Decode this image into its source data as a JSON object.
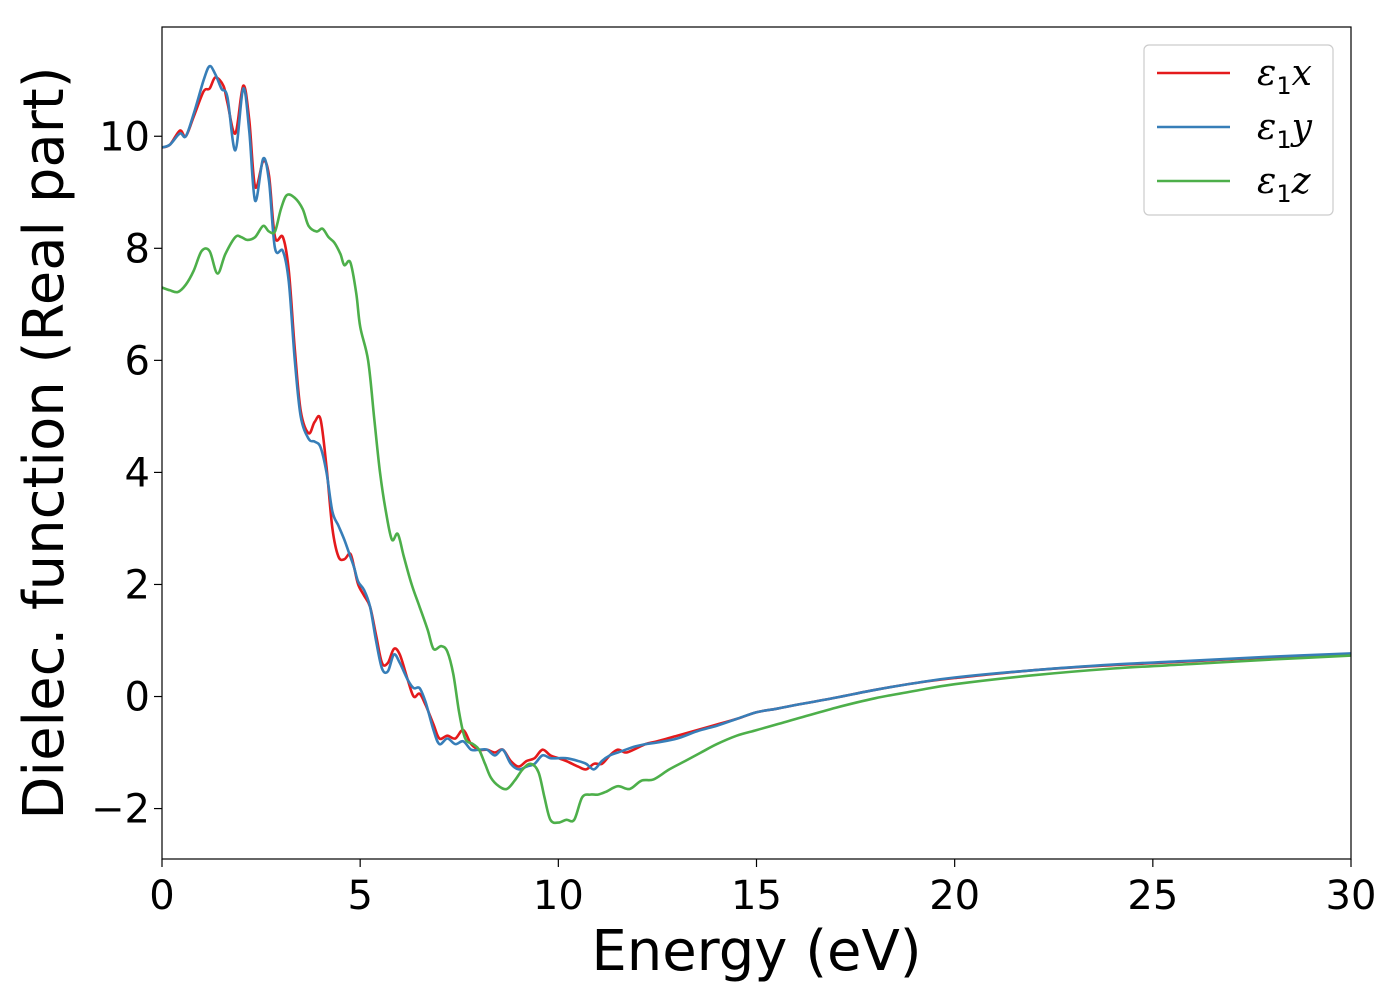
{
  "chart_data": {
    "type": "line",
    "xlabel": "Energy (eV)",
    "ylabel": "Dielec. function (Real part)",
    "xlim": [
      0,
      30
    ],
    "ylim": [
      -2.9,
      11.95
    ],
    "xticks": [
      0,
      5,
      10,
      15,
      20,
      25,
      30
    ],
    "xtick_labels": [
      "0",
      "5",
      "10",
      "15",
      "20",
      "25",
      "30"
    ],
    "yticks": [
      -2,
      0,
      2,
      4,
      6,
      8,
      10
    ],
    "ytick_labels": [
      "−2",
      "0",
      "2",
      "4",
      "6",
      "8",
      "10"
    ],
    "grid": false,
    "legend_position": "top-right",
    "series": [
      {
        "name": "ε₁x",
        "legend": {
          "symbol": "ε",
          "sub": "1",
          "var": "x"
        },
        "color": "#e41a1c",
        "points": [
          [
            0,
            9.8
          ],
          [
            0.2,
            9.85
          ],
          [
            0.45,
            10.1
          ],
          [
            0.6,
            10.0
          ],
          [
            0.8,
            10.35
          ],
          [
            1.05,
            10.8
          ],
          [
            1.2,
            10.85
          ],
          [
            1.35,
            11.05
          ],
          [
            1.55,
            10.9
          ],
          [
            1.65,
            10.6
          ],
          [
            1.85,
            10.05
          ],
          [
            2.05,
            10.9
          ],
          [
            2.2,
            10.3
          ],
          [
            2.35,
            9.1
          ],
          [
            2.55,
            9.55
          ],
          [
            2.7,
            9.3
          ],
          [
            2.85,
            8.2
          ],
          [
            3.05,
            8.2
          ],
          [
            3.2,
            7.6
          ],
          [
            3.35,
            6.2
          ],
          [
            3.5,
            5.1
          ],
          [
            3.7,
            4.7
          ],
          [
            3.85,
            4.9
          ],
          [
            4.0,
            4.95
          ],
          [
            4.15,
            4.1
          ],
          [
            4.3,
            3.0
          ],
          [
            4.45,
            2.5
          ],
          [
            4.6,
            2.45
          ],
          [
            4.75,
            2.55
          ],
          [
            4.85,
            2.3
          ],
          [
            4.95,
            2.0
          ],
          [
            5.1,
            1.8
          ],
          [
            5.25,
            1.6
          ],
          [
            5.4,
            1.1
          ],
          [
            5.55,
            0.6
          ],
          [
            5.7,
            0.6
          ],
          [
            5.85,
            0.85
          ],
          [
            6.0,
            0.75
          ],
          [
            6.2,
            0.3
          ],
          [
            6.35,
            0.0
          ],
          [
            6.5,
            0.05
          ],
          [
            6.65,
            -0.15
          ],
          [
            6.85,
            -0.5
          ],
          [
            7.0,
            -0.75
          ],
          [
            7.2,
            -0.7
          ],
          [
            7.4,
            -0.75
          ],
          [
            7.6,
            -0.6
          ],
          [
            7.8,
            -0.85
          ],
          [
            8.0,
            -0.95
          ],
          [
            8.2,
            -0.95
          ],
          [
            8.4,
            -1.0
          ],
          [
            8.6,
            -0.95
          ],
          [
            8.8,
            -1.15
          ],
          [
            9.0,
            -1.25
          ],
          [
            9.2,
            -1.15
          ],
          [
            9.4,
            -1.1
          ],
          [
            9.6,
            -0.95
          ],
          [
            9.8,
            -1.05
          ],
          [
            10.0,
            -1.1
          ],
          [
            10.2,
            -1.15
          ],
          [
            10.5,
            -1.25
          ],
          [
            10.7,
            -1.3
          ],
          [
            10.9,
            -1.2
          ],
          [
            11.1,
            -1.2
          ],
          [
            11.3,
            -1.05
          ],
          [
            11.5,
            -0.95
          ],
          [
            11.7,
            -1.0
          ],
          [
            11.9,
            -0.95
          ],
          [
            12.2,
            -0.85
          ],
          [
            12.5,
            -0.8
          ],
          [
            13.0,
            -0.7
          ],
          [
            13.5,
            -0.6
          ],
          [
            14.0,
            -0.5
          ],
          [
            14.5,
            -0.4
          ],
          [
            15.0,
            -0.28
          ],
          [
            15.5,
            -0.22
          ],
          [
            16.0,
            -0.15
          ],
          [
            17.0,
            -0.02
          ],
          [
            18.0,
            0.12
          ],
          [
            19.0,
            0.24
          ],
          [
            20.0,
            0.33
          ],
          [
            22.0,
            0.47
          ],
          [
            24.0,
            0.56
          ],
          [
            26.0,
            0.63
          ],
          [
            28.0,
            0.7
          ],
          [
            30.0,
            0.76
          ]
        ]
      },
      {
        "name": "ε₁y",
        "legend": {
          "symbol": "ε",
          "sub": "1",
          "var": "y"
        },
        "color": "#377eb8",
        "points": [
          [
            0,
            9.8
          ],
          [
            0.2,
            9.85
          ],
          [
            0.45,
            10.05
          ],
          [
            0.6,
            10.0
          ],
          [
            0.8,
            10.4
          ],
          [
            1.05,
            11.0
          ],
          [
            1.2,
            11.25
          ],
          [
            1.35,
            11.1
          ],
          [
            1.5,
            10.85
          ],
          [
            1.65,
            10.7
          ],
          [
            1.85,
            9.75
          ],
          [
            2.05,
            10.85
          ],
          [
            2.2,
            10.1
          ],
          [
            2.35,
            8.85
          ],
          [
            2.55,
            9.6
          ],
          [
            2.7,
            9.2
          ],
          [
            2.85,
            8.0
          ],
          [
            3.05,
            7.95
          ],
          [
            3.2,
            7.4
          ],
          [
            3.35,
            6.0
          ],
          [
            3.5,
            5.0
          ],
          [
            3.7,
            4.6
          ],
          [
            3.85,
            4.55
          ],
          [
            4.0,
            4.45
          ],
          [
            4.15,
            4.0
          ],
          [
            4.3,
            3.3
          ],
          [
            4.45,
            3.05
          ],
          [
            4.6,
            2.8
          ],
          [
            4.75,
            2.5
          ],
          [
            4.85,
            2.3
          ],
          [
            4.95,
            2.05
          ],
          [
            5.1,
            1.9
          ],
          [
            5.25,
            1.6
          ],
          [
            5.4,
            1.0
          ],
          [
            5.55,
            0.5
          ],
          [
            5.7,
            0.45
          ],
          [
            5.85,
            0.75
          ],
          [
            6.0,
            0.6
          ],
          [
            6.2,
            0.3
          ],
          [
            6.35,
            0.15
          ],
          [
            6.5,
            0.15
          ],
          [
            6.65,
            -0.1
          ],
          [
            6.85,
            -0.6
          ],
          [
            7.0,
            -0.85
          ],
          [
            7.2,
            -0.75
          ],
          [
            7.4,
            -0.85
          ],
          [
            7.6,
            -0.8
          ],
          [
            7.8,
            -0.95
          ],
          [
            8.0,
            -0.95
          ],
          [
            8.2,
            -0.95
          ],
          [
            8.4,
            -1.05
          ],
          [
            8.6,
            -0.95
          ],
          [
            8.8,
            -1.2
          ],
          [
            9.0,
            -1.3
          ],
          [
            9.2,
            -1.25
          ],
          [
            9.4,
            -1.2
          ],
          [
            9.6,
            -1.05
          ],
          [
            9.8,
            -1.1
          ],
          [
            10.0,
            -1.1
          ],
          [
            10.2,
            -1.1
          ],
          [
            10.5,
            -1.15
          ],
          [
            10.7,
            -1.2
          ],
          [
            10.9,
            -1.3
          ],
          [
            11.1,
            -1.15
          ],
          [
            11.3,
            -1.05
          ],
          [
            11.5,
            -1.0
          ],
          [
            11.7,
            -0.95
          ],
          [
            11.9,
            -0.9
          ],
          [
            12.2,
            -0.85
          ],
          [
            12.5,
            -0.82
          ],
          [
            13.0,
            -0.75
          ],
          [
            13.5,
            -0.62
          ],
          [
            14.0,
            -0.52
          ],
          [
            14.5,
            -0.4
          ],
          [
            15.0,
            -0.28
          ],
          [
            15.5,
            -0.22
          ],
          [
            16.0,
            -0.15
          ],
          [
            17.0,
            -0.02
          ],
          [
            18.0,
            0.12
          ],
          [
            19.0,
            0.24
          ],
          [
            20.0,
            0.34
          ],
          [
            22.0,
            0.47
          ],
          [
            24.0,
            0.57
          ],
          [
            26.0,
            0.64
          ],
          [
            28.0,
            0.71
          ],
          [
            30.0,
            0.77
          ]
        ]
      },
      {
        "name": "ε₁z",
        "legend": {
          "symbol": "ε",
          "sub": "1",
          "var": "z"
        },
        "color": "#4daf4a",
        "points": [
          [
            0,
            7.3
          ],
          [
            0.2,
            7.25
          ],
          [
            0.4,
            7.22
          ],
          [
            0.6,
            7.35
          ],
          [
            0.8,
            7.6
          ],
          [
            1.0,
            7.95
          ],
          [
            1.2,
            7.95
          ],
          [
            1.4,
            7.55
          ],
          [
            1.6,
            7.9
          ],
          [
            1.85,
            8.2
          ],
          [
            2.0,
            8.2
          ],
          [
            2.15,
            8.15
          ],
          [
            2.35,
            8.2
          ],
          [
            2.55,
            8.4
          ],
          [
            2.7,
            8.3
          ],
          [
            2.85,
            8.3
          ],
          [
            3.0,
            8.7
          ],
          [
            3.15,
            8.95
          ],
          [
            3.35,
            8.9
          ],
          [
            3.55,
            8.7
          ],
          [
            3.7,
            8.4
          ],
          [
            3.9,
            8.3
          ],
          [
            4.05,
            8.35
          ],
          [
            4.2,
            8.2
          ],
          [
            4.35,
            8.1
          ],
          [
            4.5,
            7.9
          ],
          [
            4.6,
            7.7
          ],
          [
            4.75,
            7.75
          ],
          [
            4.9,
            7.2
          ],
          [
            5.0,
            6.6
          ],
          [
            5.2,
            6.0
          ],
          [
            5.35,
            5.0
          ],
          [
            5.5,
            4.0
          ],
          [
            5.65,
            3.3
          ],
          [
            5.8,
            2.8
          ],
          [
            5.95,
            2.9
          ],
          [
            6.1,
            2.5
          ],
          [
            6.3,
            2.0
          ],
          [
            6.5,
            1.6
          ],
          [
            6.7,
            1.2
          ],
          [
            6.85,
            0.85
          ],
          [
            7.05,
            0.9
          ],
          [
            7.2,
            0.8
          ],
          [
            7.35,
            0.4
          ],
          [
            7.5,
            -0.3
          ],
          [
            7.65,
            -0.75
          ],
          [
            7.85,
            -0.85
          ],
          [
            8.0,
            -0.95
          ],
          [
            8.15,
            -1.2
          ],
          [
            8.3,
            -1.45
          ],
          [
            8.5,
            -1.6
          ],
          [
            8.7,
            -1.65
          ],
          [
            8.9,
            -1.5
          ],
          [
            9.1,
            -1.3
          ],
          [
            9.3,
            -1.2
          ],
          [
            9.5,
            -1.35
          ],
          [
            9.65,
            -1.8
          ],
          [
            9.8,
            -2.2
          ],
          [
            10.0,
            -2.25
          ],
          [
            10.2,
            -2.2
          ],
          [
            10.4,
            -2.2
          ],
          [
            10.6,
            -1.8
          ],
          [
            10.8,
            -1.75
          ],
          [
            11.0,
            -1.75
          ],
          [
            11.2,
            -1.7
          ],
          [
            11.5,
            -1.6
          ],
          [
            11.8,
            -1.65
          ],
          [
            12.1,
            -1.5
          ],
          [
            12.4,
            -1.48
          ],
          [
            12.8,
            -1.3
          ],
          [
            13.2,
            -1.15
          ],
          [
            13.6,
            -1.0
          ],
          [
            14.0,
            -0.85
          ],
          [
            14.5,
            -0.7
          ],
          [
            15.0,
            -0.6
          ],
          [
            15.5,
            -0.5
          ],
          [
            16.0,
            -0.4
          ],
          [
            17.0,
            -0.2
          ],
          [
            18.0,
            -0.03
          ],
          [
            19.0,
            0.1
          ],
          [
            20.0,
            0.22
          ],
          [
            22.0,
            0.38
          ],
          [
            24.0,
            0.5
          ],
          [
            26.0,
            0.58
          ],
          [
            28.0,
            0.66
          ],
          [
            30.0,
            0.73
          ]
        ]
      }
    ]
  }
}
